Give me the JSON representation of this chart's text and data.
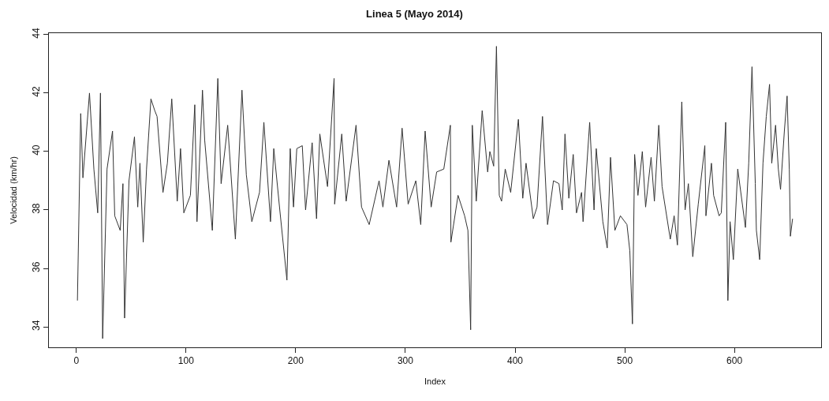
{
  "chart_data": {
    "type": "line",
    "title": "Linea 5 (Mayo 2014)",
    "xlabel": "Index",
    "ylabel": "Velocidad (km/hr)",
    "xlim": [
      -25,
      679
    ],
    "ylim": [
      33.3,
      44.05
    ],
    "xticks": [
      0,
      100,
      200,
      300,
      400,
      500,
      600
    ],
    "yticks": [
      34,
      36,
      38,
      40,
      42,
      44
    ],
    "marker": "none",
    "line_style": "solid",
    "series": [
      {
        "color": "#333333",
        "x": [
          1,
          4,
          6,
          12,
          16,
          19.5,
          22,
          24,
          28,
          33,
          35,
          40,
          42.5,
          44,
          48,
          53,
          56,
          58,
          61,
          64,
          68,
          71.5,
          73.6,
          79,
          83,
          87,
          92,
          95,
          98,
          104,
          108,
          110,
          115,
          117,
          124,
          129,
          132,
          138,
          145,
          151,
          155,
          160,
          167,
          171,
          177,
          180,
          185.5,
          192,
          195,
          198,
          201,
          206,
          209,
          215,
          219,
          222,
          229,
          235,
          235.5,
          242,
          246,
          255,
          260,
          267,
          276,
          279.5,
          285,
          292,
          297,
          302.5,
          309.5,
          314,
          318,
          323.5,
          328.5,
          335,
          341,
          341.5,
          348,
          354,
          357,
          359.5,
          361,
          364.6,
          370,
          375,
          377,
          380.5,
          383,
          385.6,
          387.7,
          391,
          396,
          403,
          407,
          410,
          416.6,
          420,
          425,
          429.6,
          435,
          440,
          443,
          445.5,
          449,
          453,
          456,
          460.6,
          462,
          468,
          472,
          474,
          480,
          484,
          487,
          491,
          496,
          502,
          504.6,
          507,
          509,
          512,
          516,
          519,
          524,
          527,
          531,
          534,
          541.5,
          545,
          548,
          552,
          555,
          558,
          562,
          567,
          573,
          574,
          579,
          581,
          586,
          588,
          592,
          594,
          596,
          599,
          603,
          610,
          613,
          616,
          619,
          620,
          623,
          626,
          629,
          632,
          634,
          637.5,
          640,
          642,
          645.5,
          648,
          650,
          651,
          653
        ],
        "values": [
          34.9,
          41.3,
          39.1,
          42.0,
          39.4,
          37.9,
          42.0,
          33.6,
          39.4,
          40.7,
          37.8,
          37.3,
          38.9,
          34.3,
          39.0,
          40.5,
          38.1,
          39.6,
          36.9,
          39.4,
          41.8,
          41.4,
          41.2,
          38.6,
          39.6,
          41.8,
          38.3,
          40.1,
          37.9,
          38.5,
          41.6,
          37.6,
          42.1,
          40.4,
          37.3,
          42.5,
          38.9,
          40.9,
          37.0,
          42.1,
          39.2,
          37.6,
          38.6,
          41.0,
          37.6,
          40.1,
          38.0,
          35.6,
          40.1,
          38.1,
          40.1,
          40.2,
          38.0,
          40.3,
          37.7,
          40.6,
          38.8,
          42.5,
          38.2,
          40.6,
          38.3,
          40.9,
          38.1,
          37.5,
          39.0,
          38.1,
          39.7,
          38.1,
          40.8,
          38.2,
          39.0,
          37.5,
          40.7,
          38.1,
          39.3,
          39.4,
          40.9,
          36.9,
          38.5,
          37.8,
          37.3,
          33.9,
          40.9,
          38.3,
          41.4,
          39.3,
          40.0,
          39.5,
          43.6,
          38.5,
          38.3,
          39.4,
          38.6,
          41.1,
          38.4,
          39.6,
          37.7,
          38.1,
          41.2,
          37.5,
          39.0,
          38.9,
          38.0,
          40.6,
          38.4,
          39.9,
          37.9,
          38.6,
          37.6,
          41.0,
          38.0,
          40.1,
          37.6,
          36.7,
          39.8,
          37.3,
          37.8,
          37.5,
          36.6,
          34.1,
          39.9,
          38.5,
          40.0,
          38.1,
          39.8,
          38.3,
          40.9,
          38.8,
          37.0,
          37.8,
          36.8,
          41.7,
          38.0,
          38.9,
          36.4,
          38.2,
          40.2,
          37.8,
          39.6,
          38.5,
          37.8,
          37.9,
          41.0,
          34.9,
          37.6,
          36.3,
          39.4,
          37.4,
          39.6,
          42.9,
          38.9,
          37.3,
          36.3,
          39.6,
          41.2,
          42.3,
          39.6,
          40.9,
          39.4,
          38.7,
          40.7,
          41.9,
          39.4,
          37.1,
          37.7
        ]
      }
    ]
  }
}
